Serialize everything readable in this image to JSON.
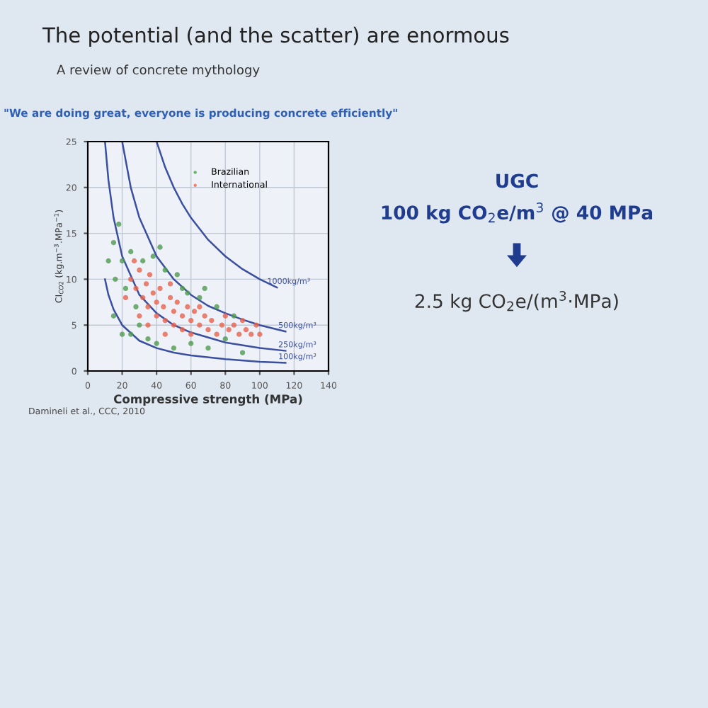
{
  "chart_data": {
    "type": "scatter",
    "title": "The potential (and the scatter) are enormous",
    "subtitle": "A review of concrete mythology",
    "xlabel": "Compressive strength (MPa)",
    "ylabel": "CI$_{CO2}$ (kg.m$^{−3}$.MPa$^{−1}$)",
    "xlim": [
      0,
      140
    ],
    "xticks": [
      0,
      20,
      40,
      60,
      80,
      100,
      120,
      140
    ],
    "ylim": [
      0,
      25
    ],
    "yticks": [
      0,
      5,
      10,
      15,
      20,
      25
    ],
    "grid": true,
    "legend": "top right",
    "marker": "circle",
    "series": [
      {
        "name": "Brazilian",
        "color": "#4f9a4f",
        "x": [
          12,
          15,
          16,
          18,
          20,
          22,
          25,
          28,
          30,
          32,
          35,
          38,
          40,
          45,
          50,
          55,
          60,
          65,
          70,
          75,
          80,
          85,
          90,
          15,
          20,
          25,
          42,
          52,
          58,
          68
        ],
        "values": [
          12,
          14,
          10,
          16,
          12,
          9,
          13,
          7,
          5,
          12,
          3.5,
          12.5,
          3,
          11,
          2.5,
          9,
          3,
          8,
          2.5,
          7,
          3.5,
          6,
          2,
          6,
          4,
          4,
          13.5,
          10.5,
          8.5,
          9
        ]
      },
      {
        "name": "International",
        "color": "#e8604c",
        "x": [
          25,
          28,
          30,
          32,
          34,
          35,
          38,
          40,
          40,
          42,
          44,
          45,
          48,
          50,
          50,
          52,
          55,
          55,
          58,
          60,
          60,
          62,
          65,
          68,
          70,
          72,
          75,
          78,
          80,
          82,
          85,
          88,
          90,
          92,
          95,
          98,
          100,
          30,
          35,
          45,
          22,
          27,
          36,
          48,
          65
        ],
        "values": [
          10,
          9,
          11,
          8,
          9.5,
          7,
          8.5,
          7.5,
          6,
          9,
          7,
          5.5,
          8,
          6.5,
          5,
          7.5,
          6,
          4.5,
          7,
          5.5,
          4,
          6.5,
          5,
          6,
          4.5,
          5.5,
          4,
          5,
          6,
          4.5,
          5,
          4,
          5.5,
          4.5,
          4,
          5,
          4,
          6,
          5,
          4,
          8,
          12,
          10.5,
          9.5,
          7
        ]
      },
      {
        "type": "line",
        "name": "1000kg/m³",
        "marker": "none",
        "color": "#3b4fa0",
        "x": [
          40,
          45,
          50,
          55,
          60,
          70,
          80,
          90,
          100,
          110
        ],
        "values": [
          25,
          22.2,
          20,
          18.2,
          16.7,
          14.3,
          12.5,
          11.1,
          10,
          9.1
        ]
      },
      {
        "type": "line",
        "name": "500kg/m³",
        "marker": "none",
        "color": "#3b4fa0",
        "x": [
          20,
          25,
          30,
          40,
          50,
          60,
          70,
          80,
          90,
          100,
          115
        ],
        "values": [
          25,
          20,
          16.7,
          12.5,
          10,
          8.3,
          7.1,
          6.3,
          5.6,
          5,
          4.3
        ]
      },
      {
        "type": "line",
        "name": "250kg/m³",
        "marker": "none",
        "color": "#3b4fa0",
        "x": [
          10,
          12,
          15,
          20,
          30,
          40,
          50,
          60,
          80,
          100,
          115
        ],
        "values": [
          25,
          20.8,
          16.7,
          12.5,
          8.3,
          6.3,
          5,
          4.2,
          3.1,
          2.5,
          2.2
        ]
      },
      {
        "type": "line",
        "name": "100kg/m³",
        "marker": "none",
        "color": "#3b4fa0",
        "x": [
          10,
          12,
          15,
          20,
          30,
          40,
          50,
          60,
          80,
          100,
          115
        ],
        "values": [
          10,
          8.3,
          6.7,
          5,
          3.3,
          2.5,
          2,
          1.7,
          1.3,
          1,
          0.9
        ]
      }
    ],
    "annotations": [
      "\"We are doing great, everyone is producing concrete efficiently\"",
      "UGC",
      "100 kg CO$_{2}$e/m$^{3}$ @ 40 MPa",
      "2.5 kg CO$_{2}$e/(m$^{3}$·MPa)",
      "Damineli et al., CCC, 2010"
    ]
  }
}
